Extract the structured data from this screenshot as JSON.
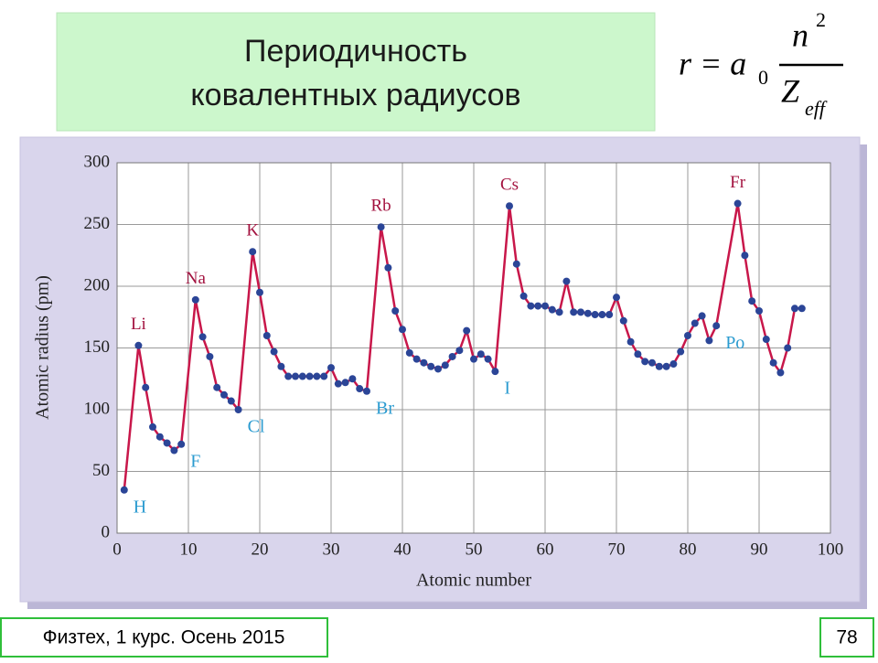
{
  "slide": {
    "title_lines": [
      "Периодичность",
      "ковалентных радиусов"
    ],
    "formula": {
      "lhs": "r = a",
      "lhs_sub": "0",
      "num": "n",
      "num_sup": "2",
      "den": "Z",
      "den_sub": "eff"
    },
    "footer": "Физтех, 1 курс. Осень 2015",
    "page_number": "78"
  },
  "chart_data": {
    "type": "line",
    "x_label": "Atomic number",
    "y_label": "Atomic radius (pm)",
    "xlim": [
      0,
      100
    ],
    "xticks": [
      0,
      10,
      20,
      30,
      40,
      50,
      60,
      70,
      80,
      90,
      100
    ],
    "ylim": [
      0,
      300
    ],
    "yticks": [
      0,
      50,
      100,
      150,
      200,
      250,
      300
    ],
    "grid": true,
    "line_color": "#c8174a",
    "marker_color": "#2b4597",
    "x": [
      1,
      3,
      4,
      5,
      6,
      7,
      8,
      9,
      11,
      12,
      13,
      14,
      15,
      16,
      17,
      19,
      20,
      21,
      22,
      23,
      24,
      25,
      26,
      27,
      28,
      29,
      30,
      31,
      32,
      33,
      34,
      35,
      37,
      38,
      39,
      40,
      41,
      42,
      43,
      44,
      45,
      46,
      47,
      48,
      49,
      50,
      51,
      52,
      53,
      55,
      56,
      57,
      58,
      59,
      60,
      61,
      62,
      63,
      64,
      65,
      66,
      67,
      68,
      69,
      70,
      71,
      72,
      73,
      74,
      75,
      76,
      77,
      78,
      79,
      80,
      81,
      82,
      83,
      84,
      87,
      88,
      89,
      90,
      91,
      92,
      93,
      94,
      95,
      96
    ],
    "values": [
      35,
      152,
      118,
      86,
      78,
      73,
      67,
      72,
      189,
      159,
      143,
      118,
      112,
      107,
      100,
      228,
      195,
      160,
      147,
      135,
      127,
      127,
      127,
      127,
      127,
      127,
      134,
      121,
      122,
      125,
      117,
      115,
      248,
      215,
      180,
      165,
      146,
      141,
      138,
      135,
      133,
      136,
      143,
      148,
      164,
      141,
      145,
      141,
      131,
      265,
      218,
      192,
      184,
      184,
      184,
      181,
      179,
      204,
      179,
      179,
      178,
      177,
      177,
      177,
      191,
      172,
      155,
      145,
      139,
      138,
      135,
      135,
      137,
      147,
      160,
      170,
      176,
      156,
      168,
      267,
      225,
      188,
      180,
      157,
      138,
      130,
      150,
      182,
      182
    ],
    "peak_labels": [
      {
        "text": "Li",
        "x": 3
      },
      {
        "text": "Na",
        "x": 11
      },
      {
        "text": "K",
        "x": 19
      },
      {
        "text": "Rb",
        "x": 37
      },
      {
        "text": "Cs",
        "x": 55
      },
      {
        "text": "Fr",
        "x": 87
      }
    ],
    "peak_label_color": "#a3123f",
    "trough_labels": [
      {
        "text": "H",
        "x": 1
      },
      {
        "text": "F",
        "x": 9
      },
      {
        "text": "Cl",
        "x": 17
      },
      {
        "text": "Br",
        "x": 35
      },
      {
        "text": "I",
        "x": 53
      },
      {
        "text": "Po",
        "x": 84
      }
    ],
    "trough_label_color": "#2b9bd0"
  }
}
